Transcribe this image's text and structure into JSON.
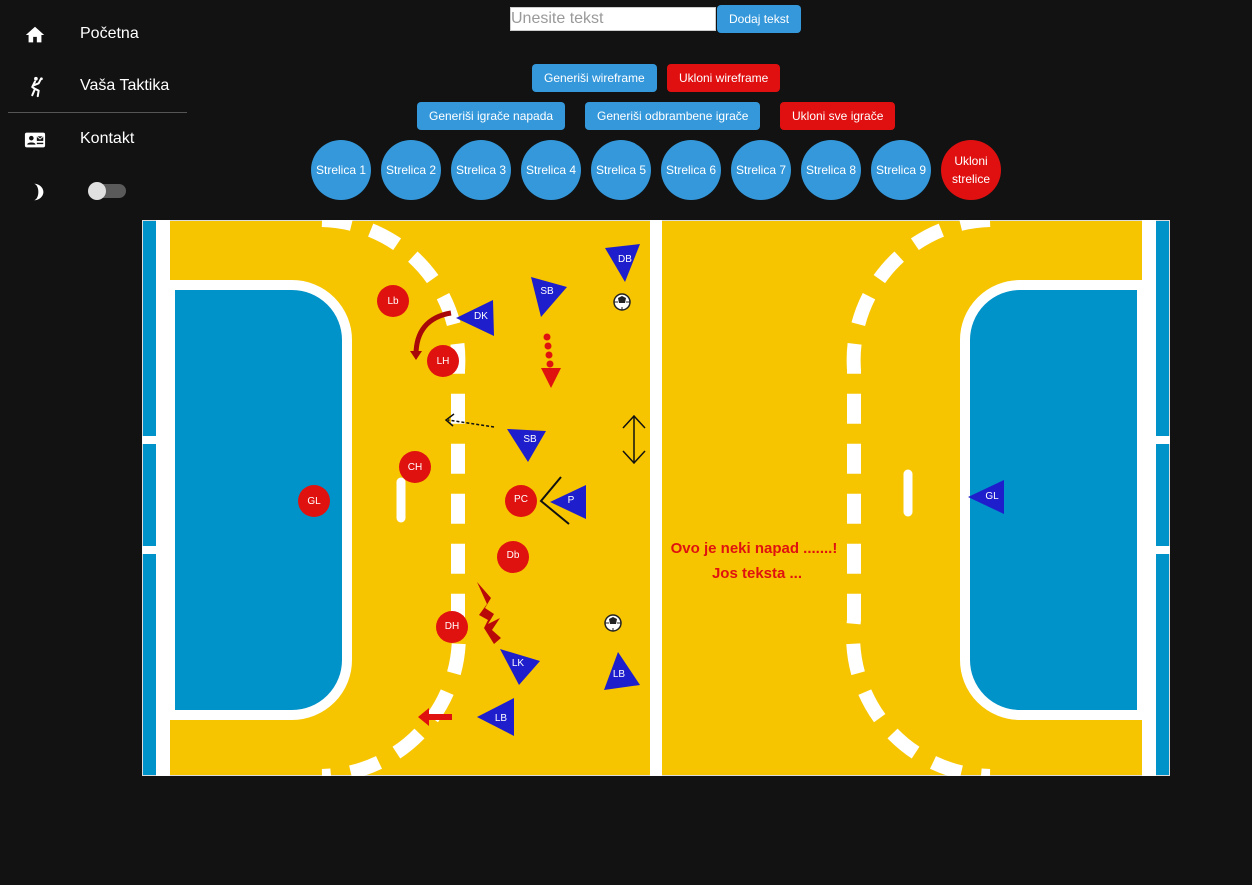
{
  "nav": {
    "items": [
      {
        "label": "Početna",
        "icon": "home-icon"
      },
      {
        "label": "Vaša Taktika",
        "icon": "handball-player-icon"
      },
      {
        "label": "Kontakt",
        "icon": "contact-card-icon"
      }
    ],
    "theme_icon": "moon-icon"
  },
  "text_tool": {
    "placeholder": "Unesite tekst",
    "add_label": "Dodaj tekst"
  },
  "wireframe": {
    "generate_label": "Generiši wireframe",
    "remove_label": "Ukloni wireframe"
  },
  "players_buttons": {
    "attack_label": "Generiši igrače napada",
    "defense_label": "Generiši odbrambene igrače",
    "remove_label": "Ukloni sve igrače"
  },
  "arrows": {
    "items": [
      "Strelica 1",
      "Strelica 2",
      "Strelica 3",
      "Strelica 4",
      "Strelica 5",
      "Strelica 6",
      "Strelica 7",
      "Strelica 8",
      "Strelica 9"
    ],
    "remove_line1": "Ukloni",
    "remove_line2": "strelice"
  },
  "court": {
    "colors": {
      "floor": "#f7c500",
      "area": "#0093c9",
      "attack": "#e0120f",
      "defense": "#1e1ecc",
      "annotation": "#e0120f"
    },
    "attackers": [
      "Lb",
      "LH",
      "CH",
      "GL",
      "PC",
      "Db",
      "DH"
    ],
    "defenders": [
      "DB",
      "SB",
      "DK",
      "SB",
      "P",
      "GL",
      "LK",
      "LB",
      "LB"
    ],
    "annotation_line1": "Ovo je neki napad .......!",
    "annotation_line2": "Jos teksta ..."
  }
}
